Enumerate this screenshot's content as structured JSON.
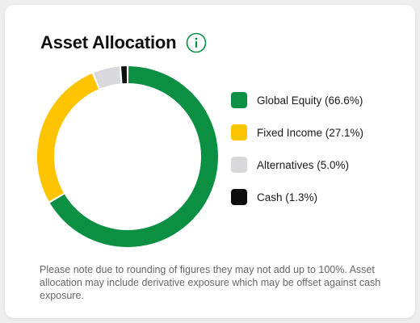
{
  "header": {
    "title": "Asset Allocation",
    "info_icon": "info-circle-icon"
  },
  "colors": {
    "accent": "#0b8f43",
    "equity": "#0b8f43",
    "fixed_income": "#ffc400",
    "alternatives": "#d9d9dc",
    "cash": "#0d0d0d"
  },
  "chart_data": {
    "type": "pie",
    "donut": true,
    "categories": [
      "Global Equity",
      "Fixed Income",
      "Alternatives",
      "Cash"
    ],
    "values": [
      66.6,
      27.1,
      5.0,
      1.3
    ],
    "colors": [
      "#0b8f43",
      "#ffc400",
      "#d9d9dc",
      "#0d0d0d"
    ],
    "title": "",
    "legend_placement": "right"
  },
  "legend": [
    {
      "label": "Global Equity (66.6%)",
      "color": "#0b8f43"
    },
    {
      "label": "Fixed Income (27.1%)",
      "color": "#ffc400"
    },
    {
      "label": "Alternatives (5.0%)",
      "color": "#d9d9dc"
    },
    {
      "label": "Cash (1.3%)",
      "color": "#0d0d0d"
    }
  ],
  "disclaimer": "Please note due to rounding of figures they may not add up to 100%. Asset allocation may include derivative exposure which may be offset against cash exposure."
}
